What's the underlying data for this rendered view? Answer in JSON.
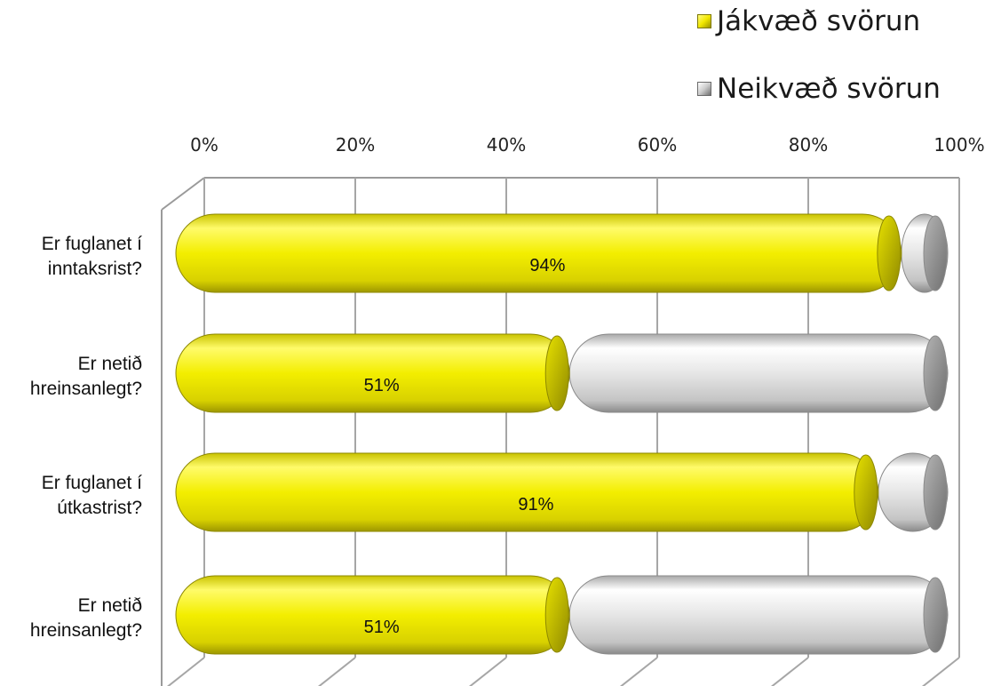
{
  "chart_data": {
    "type": "bar",
    "orientation": "horizontal",
    "stacked": "100%",
    "categories": [
      "Er fuglanet í inntaksrist?",
      "Er netið hreinsanlegt?",
      "Er fuglanet í útkastrist?",
      "Er netið hreinsanlegt?"
    ],
    "category_lines": [
      [
        "Er fuglanet í",
        "inntaksrist?"
      ],
      [
        "Er netið",
        "hreinsanlegt?"
      ],
      [
        "Er fuglanet í",
        "útkastrist?"
      ],
      [
        "Er netið",
        "hreinsanlegt?"
      ]
    ],
    "series": [
      {
        "name": "Jákvæð svörun",
        "values": [
          94,
          51,
          91,
          51
        ],
        "color": "#f5f000",
        "data_labels": [
          "94%",
          "51%",
          "91%",
          "51%"
        ]
      },
      {
        "name": "Neikvæð svörun",
        "values": [
          6,
          49,
          9,
          49
        ],
        "color": "#d4d4d4"
      }
    ],
    "x_ticks": [
      "0%",
      "20%",
      "40%",
      "60%",
      "80%",
      "100%"
    ],
    "xlim": [
      0,
      100
    ],
    "grid": true,
    "legend_position": "top-right"
  }
}
